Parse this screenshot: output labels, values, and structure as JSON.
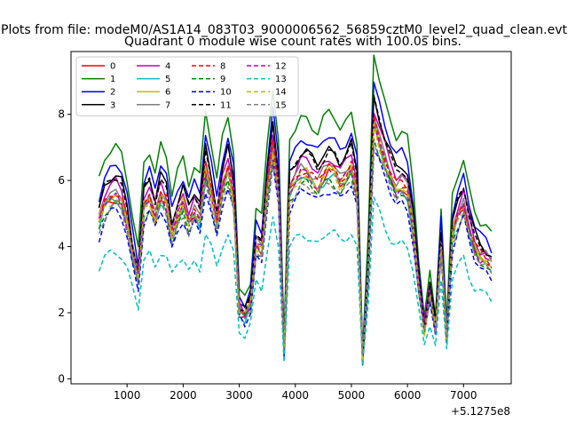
{
  "chart_data": {
    "type": "line",
    "suptitle": "Plots from file: modeM0/AS1A14_083T03_9000006562_56859cztM0_level2_quad_clean.evt",
    "title": "Quadrant 0 module wise count rates with 100.0s bins.",
    "xlabel": "",
    "ylabel": "",
    "x_offset_label": "+5.1275e8",
    "xlim": [
      0,
      7850
    ],
    "ylim": [
      -0.15,
      9.9
    ],
    "x_ticks": [
      1000,
      2000,
      3000,
      4000,
      5000,
      6000,
      7000
    ],
    "x_tick_labels": [
      "1000",
      "2000",
      "3000",
      "4000",
      "5000",
      "6000",
      "7000"
    ],
    "y_ticks": [
      0,
      2,
      4,
      6,
      8
    ],
    "y_tick_labels": [
      "0",
      "2",
      "4",
      "6",
      "8"
    ],
    "grid": false,
    "legend_position": "upper-left",
    "legend_columns": 4,
    "x": [
      500,
      600,
      700,
      800,
      900,
      1000,
      1100,
      1200,
      1300,
      1400,
      1500,
      1600,
      1700,
      1800,
      1900,
      2000,
      2100,
      2200,
      2300,
      2400,
      2500,
      2600,
      2700,
      2800,
      2900,
      3000,
      3100,
      3200,
      3300,
      3400,
      3500,
      3600,
      3700,
      3800,
      3900,
      4000,
      4100,
      4200,
      4300,
      4400,
      4500,
      4600,
      4700,
      4800,
      4900,
      5000,
      5100,
      5200,
      5300,
      5400,
      5500,
      5600,
      5700,
      5800,
      5900,
      6000,
      6100,
      6200,
      6300,
      6400,
      6500,
      6600,
      6700,
      6800,
      6900,
      7000,
      7100,
      7200,
      7300,
      7400,
      7500
    ],
    "base_profile": [
      5.0,
      5.6,
      5.8,
      5.9,
      5.7,
      5.0,
      4.0,
      3.2,
      5.5,
      5.8,
      5.2,
      5.9,
      5.6,
      4.6,
      5.2,
      5.6,
      5.0,
      5.4,
      5.1,
      6.7,
      5.9,
      5.0,
      6.1,
      6.7,
      5.8,
      2.2,
      2.0,
      2.4,
      4.3,
      4.1,
      6.0,
      7.4,
      6.0,
      0.9,
      6.0,
      6.3,
      6.6,
      6.6,
      6.4,
      6.2,
      6.5,
      6.7,
      6.6,
      6.3,
      6.5,
      6.8,
      6.0,
      0.6,
      3.5,
      8.2,
      7.6,
      7.0,
      6.5,
      6.1,
      6.2,
      6.0,
      4.9,
      3.1,
      1.6,
      2.7,
      1.6,
      4.3,
      1.3,
      4.6,
      5.2,
      5.6,
      4.8,
      4.2,
      3.9,
      3.8,
      3.6
    ],
    "series": [
      {
        "name": "0",
        "color": "#ff0000",
        "dash": "solid",
        "scale": 0.93
      },
      {
        "name": "1",
        "color": "#008000",
        "dash": "solid",
        "scale": 1.2
      },
      {
        "name": "2",
        "color": "#0000ff",
        "dash": "solid",
        "scale": 1.1
      },
      {
        "name": "3",
        "color": "#000000",
        "dash": "solid",
        "scale": 1.04
      },
      {
        "name": "4",
        "color": "#bf00bf",
        "dash": "solid",
        "scale": 1.0
      },
      {
        "name": "5",
        "color": "#00bfbf",
        "dash": "solid",
        "scale": 0.92
      },
      {
        "name": "6",
        "color": "#bfbf00",
        "dash": "solid",
        "scale": 0.95
      },
      {
        "name": "7",
        "color": "#808080",
        "dash": "solid",
        "scale": 0.97
      },
      {
        "name": "8",
        "color": "#ff0000",
        "dash": "dashed",
        "scale": 0.96
      },
      {
        "name": "9",
        "color": "#008000",
        "dash": "dashed",
        "scale": 0.9
      },
      {
        "name": "10",
        "color": "#0000ff",
        "dash": "dashed",
        "scale": 0.86
      },
      {
        "name": "11",
        "color": "#000000",
        "dash": "dashed",
        "scale": 1.03
      },
      {
        "name": "12",
        "color": "#bf00bf",
        "dash": "dashed",
        "scale": 0.94
      },
      {
        "name": "13",
        "color": "#00bfbf",
        "dash": "dashed",
        "scale": 0.66
      },
      {
        "name": "14",
        "color": "#bfbf00",
        "dash": "dashed",
        "scale": 0.93
      },
      {
        "name": "15",
        "color": "#808080",
        "dash": "dashed",
        "scale": 0.89
      }
    ]
  }
}
